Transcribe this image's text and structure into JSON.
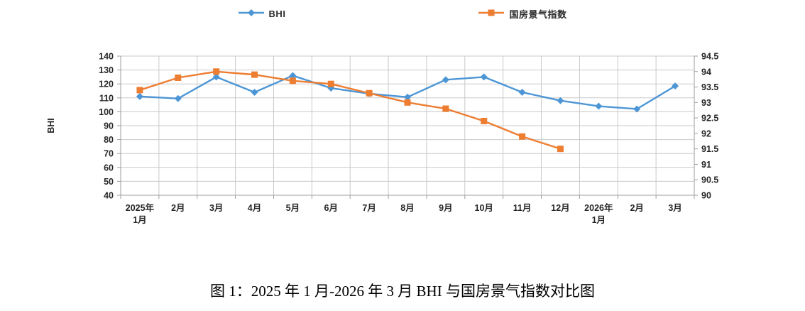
{
  "figure": {
    "caption": "图 1：2025 年 1 月-2026 年 3 月 BHI 与国房景气指数对比图"
  },
  "legend": {
    "position": "top",
    "items": [
      {
        "label": "BHI",
        "color": "#4d96d6",
        "marker": "diamond"
      },
      {
        "label": "国房景气指数",
        "color": "#ed7d31",
        "marker": "square"
      }
    ]
  },
  "chart_data": {
    "type": "line",
    "title": "",
    "categories": [
      "2025年\n1月",
      "2月",
      "3月",
      "4月",
      "5月",
      "6月",
      "7月",
      "8月",
      "9月",
      "10月",
      "11月",
      "12月",
      "2026年\n1月",
      "2月",
      "3月"
    ],
    "series": [
      {
        "name": "BHI",
        "axis": "left",
        "color": "#4d96d6",
        "marker": "diamond",
        "values": [
          111,
          109.5,
          125,
          114,
          126,
          117,
          113,
          110.5,
          123,
          125,
          114,
          108,
          104,
          102,
          118.5
        ]
      },
      {
        "name": "国房景气指数",
        "axis": "right",
        "color": "#ed7d31",
        "marker": "square",
        "values": [
          93.4,
          93.8,
          94,
          93.9,
          93.7,
          93.6,
          93.3,
          93,
          92.8,
          92.4,
          91.9,
          91.5,
          null,
          null,
          null
        ]
      }
    ],
    "left_axis": {
      "title": "BHI",
      "min": 40,
      "max": 140,
      "step": 10,
      "ticks": [
        140,
        130,
        120,
        110,
        100,
        90,
        80,
        70,
        60,
        50,
        40
      ]
    },
    "right_axis": {
      "title": "",
      "min": 90,
      "max": 94.5,
      "step": 0.5,
      "ticks": [
        94.5,
        94,
        93.5,
        93,
        92.5,
        92,
        91.5,
        91,
        90.5,
        90
      ]
    },
    "grid": true,
    "legend_position": "top"
  },
  "colors": {
    "bhi_series": "#4d96d6",
    "guofang_series": "#ed7d31",
    "gridline": "#c9c9c9",
    "axis_line": "#9e9e9e",
    "tick_text": "#262626"
  }
}
